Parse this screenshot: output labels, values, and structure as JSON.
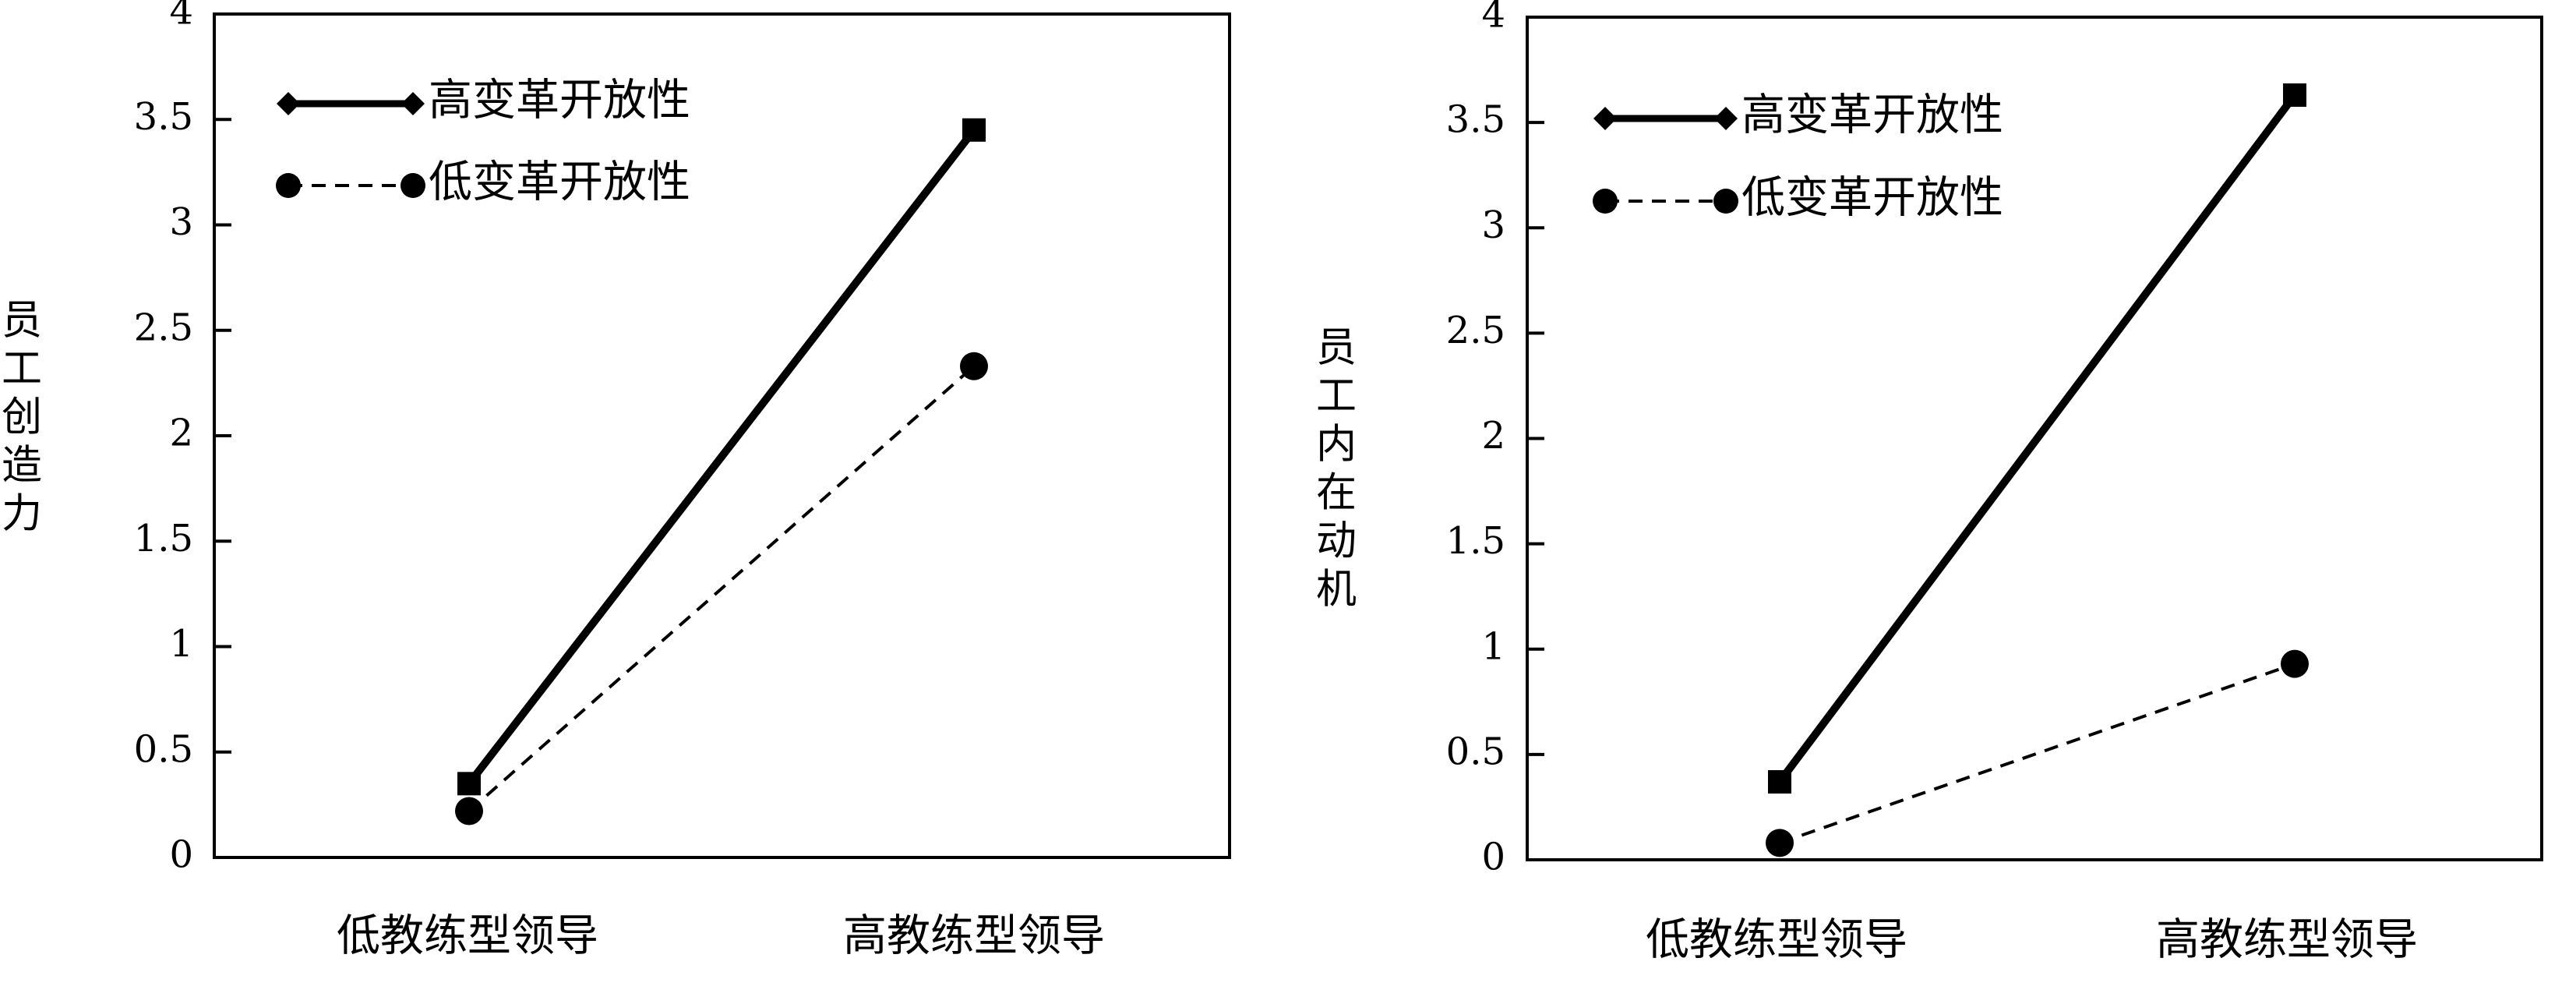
{
  "chart_data": [
    {
      "type": "line",
      "categories": [
        "低教练型领导",
        "高教练型领导"
      ],
      "series": [
        {
          "name": "高变革开放性",
          "values": [
            0.35,
            3.45
          ],
          "style": "solid",
          "marker": "diamond",
          "color": "#000000"
        },
        {
          "name": "低变革开放性",
          "values": [
            0.22,
            2.33
          ],
          "style": "dashed",
          "marker": "circle",
          "color": "#000000"
        }
      ],
      "ylabel": "员工创造力",
      "xlabel": "",
      "ylim": [
        0,
        4
      ],
      "yticks": [
        0,
        0.5,
        1,
        1.5,
        2,
        2.5,
        3,
        3.5,
        4
      ],
      "ytick_labels": [
        "0",
        "0.5",
        "1",
        "1.5",
        "2",
        "2.5",
        "3",
        "3.5",
        "4"
      ],
      "grid": false,
      "legend_position": "top-left"
    },
    {
      "type": "line",
      "categories": [
        "低教练型领导",
        "高教练型领导"
      ],
      "series": [
        {
          "name": "高变革开放性",
          "values": [
            0.37,
            3.63
          ],
          "style": "solid",
          "marker": "diamond",
          "color": "#000000"
        },
        {
          "name": "低变革开放性",
          "values": [
            0.08,
            0.93
          ],
          "style": "dashed",
          "marker": "circle",
          "color": "#000000"
        }
      ],
      "ylabel": "员工内在动机",
      "xlabel": "",
      "ylim": [
        0,
        4
      ],
      "yticks": [
        0,
        0.5,
        1,
        1.5,
        2,
        2.5,
        3,
        3.5,
        4
      ],
      "ytick_labels": [
        "0",
        "0.5",
        "1",
        "1.5",
        "2",
        "2.5",
        "3",
        "3.5",
        "4"
      ],
      "grid": false,
      "legend_position": "top-left"
    }
  ]
}
